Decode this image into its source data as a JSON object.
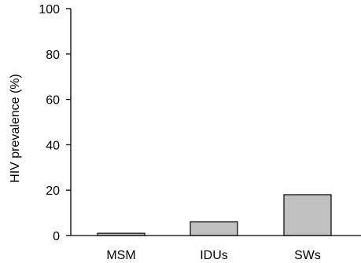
{
  "chart_data": {
    "type": "bar",
    "title": "",
    "xlabel": "",
    "ylabel": "HIV prevalence (%)",
    "categories": [
      "MSM",
      "IDUs",
      "SWs"
    ],
    "values": [
      1,
      6,
      18
    ],
    "ylim": [
      0,
      100
    ],
    "yticks": [
      "0",
      "20",
      "40",
      "60",
      "80",
      "100"
    ],
    "bar_color": "#c0c0c0",
    "bar_edge_color": "#000000",
    "grid": false,
    "legend": "none"
  }
}
